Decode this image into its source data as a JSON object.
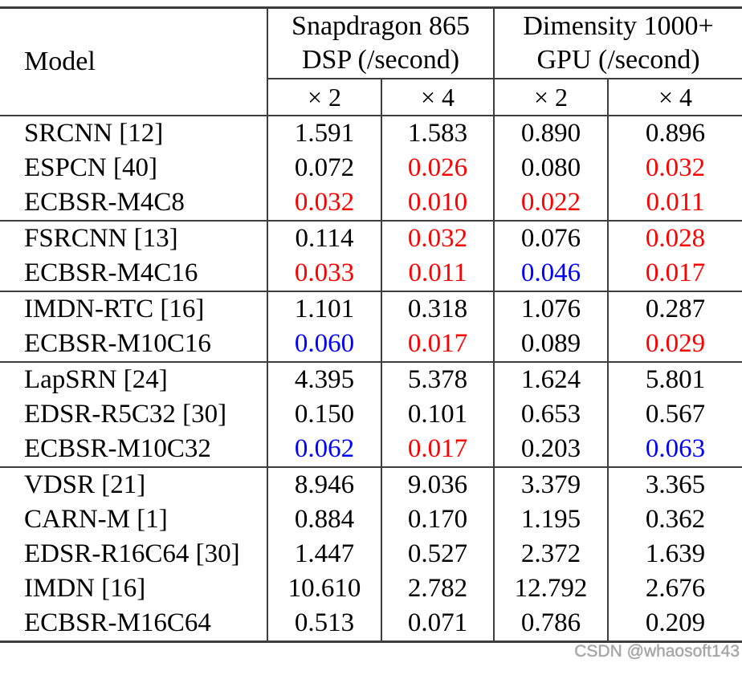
{
  "colors": {
    "highlight_red": "#ff0000",
    "highlight_blue": "#0000ff",
    "rule": "#3d3d3d",
    "watermark": "#a6a6a6"
  },
  "watermark": "CSDN @whaosoft143",
  "table": {
    "model_header": "Model",
    "col_groups": [
      {
        "line1": "Snapdragon 865",
        "line2": "DSP (/second)",
        "sub": [
          "× 2",
          "× 4"
        ]
      },
      {
        "line1": "Dimensity 1000+",
        "line2": "GPU (/second)",
        "sub": [
          "× 2",
          "× 4"
        ]
      }
    ],
    "groups": [
      {
        "rows": [
          {
            "model": "SRCNN [12]",
            "values": [
              {
                "t": "1.591",
                "c": "black"
              },
              {
                "t": "1.583",
                "c": "black"
              },
              {
                "t": "0.890",
                "c": "black"
              },
              {
                "t": "0.896",
                "c": "black"
              }
            ]
          },
          {
            "model": "ESPCN [40]",
            "values": [
              {
                "t": "0.072",
                "c": "black"
              },
              {
                "t": "0.026",
                "c": "red"
              },
              {
                "t": "0.080",
                "c": "black"
              },
              {
                "t": "0.032",
                "c": "red"
              }
            ]
          },
          {
            "model": "ECBSR-M4C8",
            "values": [
              {
                "t": "0.032",
                "c": "red"
              },
              {
                "t": "0.010",
                "c": "red"
              },
              {
                "t": "0.022",
                "c": "red"
              },
              {
                "t": "0.011",
                "c": "red"
              }
            ]
          }
        ]
      },
      {
        "rows": [
          {
            "model": "FSRCNN [13]",
            "values": [
              {
                "t": "0.114",
                "c": "black"
              },
              {
                "t": "0.032",
                "c": "red"
              },
              {
                "t": "0.076",
                "c": "black"
              },
              {
                "t": "0.028",
                "c": "red"
              }
            ]
          },
          {
            "model": "ECBSR-M4C16",
            "values": [
              {
                "t": "0.033",
                "c": "red"
              },
              {
                "t": "0.011",
                "c": "red"
              },
              {
                "t": "0.046",
                "c": "blue"
              },
              {
                "t": "0.017",
                "c": "red"
              }
            ]
          }
        ]
      },
      {
        "rows": [
          {
            "model": "IMDN-RTC [16]",
            "values": [
              {
                "t": "1.101",
                "c": "black"
              },
              {
                "t": "0.318",
                "c": "black"
              },
              {
                "t": "1.076",
                "c": "black"
              },
              {
                "t": "0.287",
                "c": "black"
              }
            ]
          },
          {
            "model": "ECBSR-M10C16",
            "values": [
              {
                "t": "0.060",
                "c": "blue"
              },
              {
                "t": "0.017",
                "c": "red"
              },
              {
                "t": "0.089",
                "c": "black"
              },
              {
                "t": "0.029",
                "c": "red"
              }
            ]
          }
        ]
      },
      {
        "rows": [
          {
            "model": "LapSRN [24]",
            "values": [
              {
                "t": "4.395",
                "c": "black"
              },
              {
                "t": "5.378",
                "c": "black"
              },
              {
                "t": "1.624",
                "c": "black"
              },
              {
                "t": "5.801",
                "c": "black"
              }
            ]
          },
          {
            "model": "EDSR-R5C32 [30]",
            "values": [
              {
                "t": "0.150",
                "c": "black"
              },
              {
                "t": "0.101",
                "c": "black"
              },
              {
                "t": "0.653",
                "c": "black"
              },
              {
                "t": "0.567",
                "c": "black"
              }
            ]
          },
          {
            "model": "ECBSR-M10C32",
            "values": [
              {
                "t": "0.062",
                "c": "blue"
              },
              {
                "t": "0.017",
                "c": "red"
              },
              {
                "t": "0.203",
                "c": "black"
              },
              {
                "t": "0.063",
                "c": "blue"
              }
            ]
          }
        ]
      },
      {
        "rows": [
          {
            "model": "VDSR [21]",
            "values": [
              {
                "t": "8.946",
                "c": "black"
              },
              {
                "t": "9.036",
                "c": "black"
              },
              {
                "t": "3.379",
                "c": "black"
              },
              {
                "t": "3.365",
                "c": "black"
              }
            ]
          },
          {
            "model": "CARN-M [1]",
            "values": [
              {
                "t": "0.884",
                "c": "black"
              },
              {
                "t": "0.170",
                "c": "black"
              },
              {
                "t": "1.195",
                "c": "black"
              },
              {
                "t": "0.362",
                "c": "black"
              }
            ]
          },
          {
            "model": "EDSR-R16C64 [30]",
            "values": [
              {
                "t": "1.447",
                "c": "black"
              },
              {
                "t": "0.527",
                "c": "black"
              },
              {
                "t": "2.372",
                "c": "black"
              },
              {
                "t": "1.639",
                "c": "black"
              }
            ]
          },
          {
            "model": "IMDN [16]",
            "values": [
              {
                "t": "10.610",
                "c": "black"
              },
              {
                "t": "2.782",
                "c": "black"
              },
              {
                "t": "12.792",
                "c": "black"
              },
              {
                "t": "2.676",
                "c": "black"
              }
            ]
          },
          {
            "model": "ECBSR-M16C64",
            "values": [
              {
                "t": "0.513",
                "c": "black"
              },
              {
                "t": "0.071",
                "c": "black"
              },
              {
                "t": "0.786",
                "c": "black"
              },
              {
                "t": "0.209",
                "c": "black"
              }
            ]
          }
        ]
      }
    ]
  }
}
